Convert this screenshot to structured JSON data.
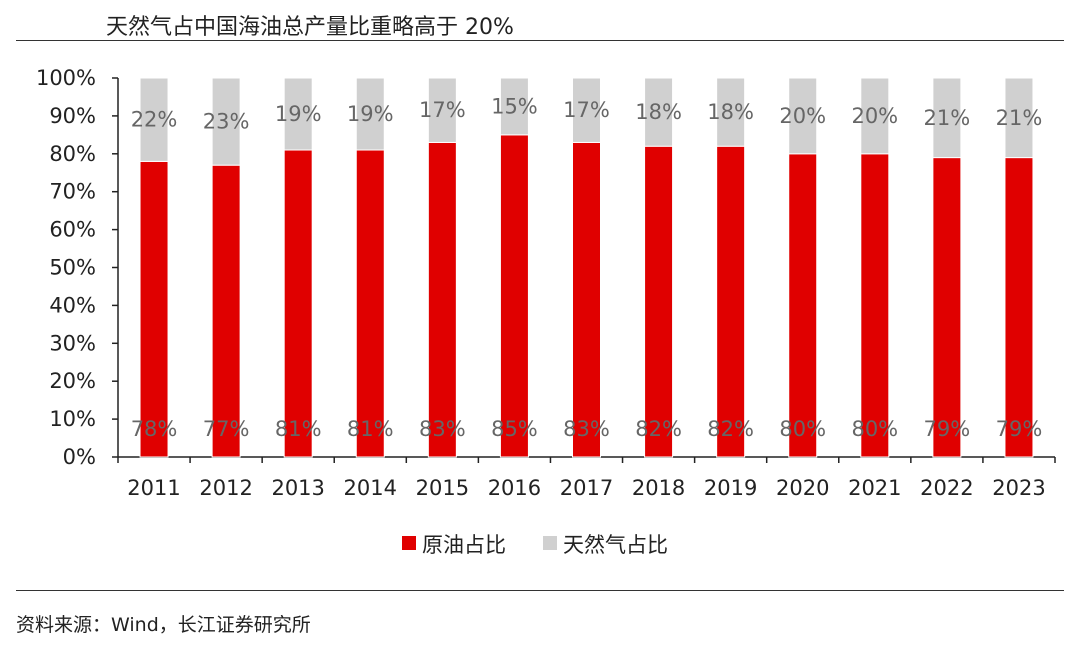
{
  "title": "天然气占中国海油总产量比重略高于 20%",
  "source": "资料来源：Wind，长江证券研究所",
  "chart_data": {
    "type": "bar",
    "stacked": true,
    "categories": [
      "2011",
      "2012",
      "2013",
      "2014",
      "2015",
      "2016",
      "2017",
      "2018",
      "2019",
      "2020",
      "2021",
      "2022",
      "2023"
    ],
    "series": [
      {
        "name": "原油占比",
        "color": "#e00000",
        "values": [
          78,
          77,
          81,
          81,
          83,
          85,
          83,
          82,
          82,
          80,
          80,
          79,
          79
        ],
        "labels": [
          "78%",
          "77%",
          "81%",
          "81%",
          "83%",
          "85%",
          "83%",
          "82%",
          "82%",
          "80%",
          "80%",
          "79%",
          "79%"
        ]
      },
      {
        "name": "天然气占比",
        "color": "#d0d0d0",
        "values": [
          22,
          23,
          19,
          19,
          17,
          15,
          17,
          18,
          18,
          20,
          20,
          21,
          21
        ],
        "labels": [
          "22%",
          "23%",
          "19%",
          "19%",
          "17%",
          "15%",
          "17%",
          "18%",
          "18%",
          "20%",
          "20%",
          "21%",
          "21%"
        ]
      }
    ],
    "yticks": [
      "0%",
      "10%",
      "20%",
      "30%",
      "40%",
      "50%",
      "60%",
      "70%",
      "80%",
      "90%",
      "100%"
    ],
    "ylim": [
      0,
      100
    ],
    "grid": false,
    "legend": "bottom"
  }
}
